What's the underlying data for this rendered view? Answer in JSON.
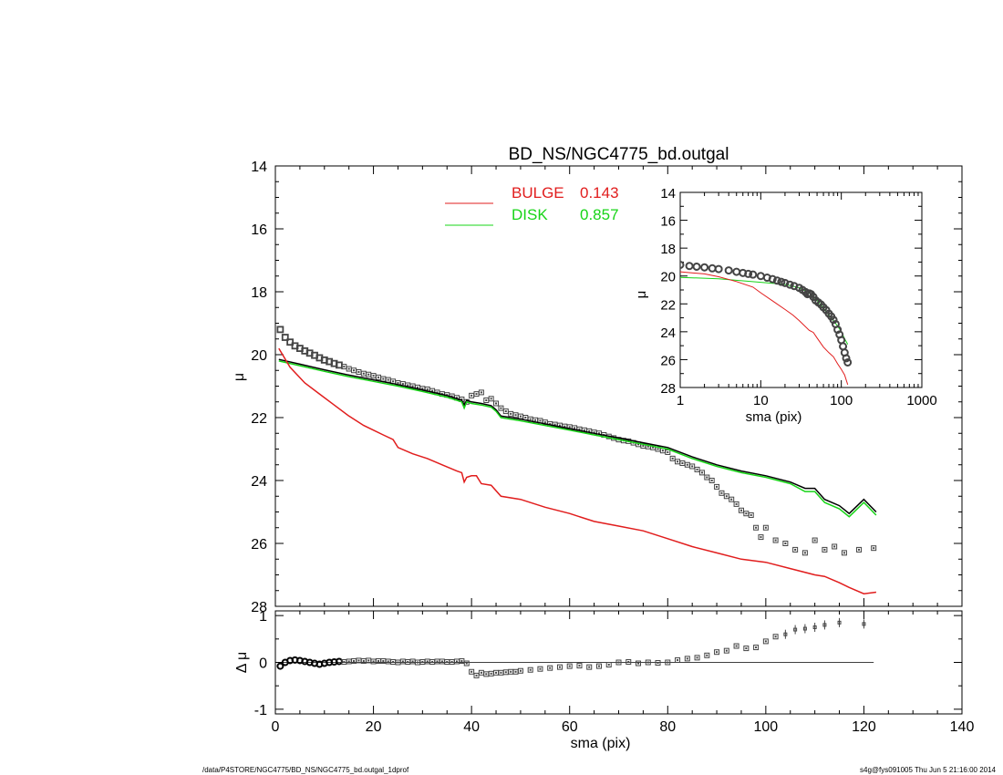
{
  "chart_data": [
    {
      "id": "main",
      "type": "scatter",
      "title": "BD_NS/NGC4775_bd.outgal",
      "ylabel": "μ",
      "xlim": [
        0,
        140
      ],
      "ylim": [
        28,
        14
      ],
      "yticks": [
        14,
        16,
        18,
        20,
        22,
        24,
        26,
        28
      ],
      "grid": false,
      "legend_position": "top-center",
      "legend": [
        {
          "label": "BULGE",
          "value": "0.143",
          "color": "#e11d1d"
        },
        {
          "label": "DISK",
          "value": "0.857",
          "color": "#17d417"
        }
      ],
      "series": [
        {
          "name": "data",
          "style": "open-square-markers",
          "color": "#444444",
          "x": [
            1,
            2,
            3,
            4,
            5,
            6,
            7,
            8,
            9,
            10,
            11,
            12,
            13,
            14,
            15,
            16,
            17,
            18,
            19,
            20,
            21,
            22,
            23,
            24,
            25,
            26,
            27,
            28,
            29,
            30,
            31,
            32,
            33,
            34,
            35,
            36,
            37,
            38,
            39,
            40,
            41,
            42,
            43,
            44,
            45,
            46,
            47,
            48,
            49,
            50,
            51,
            52,
            53,
            54,
            55,
            56,
            57,
            58,
            59,
            60,
            61,
            62,
            63,
            64,
            65,
            66,
            67,
            68,
            69,
            70,
            71,
            72,
            73,
            74,
            75,
            76,
            77,
            78,
            79,
            80,
            81,
            82,
            83,
            84,
            85,
            86,
            87,
            88,
            89,
            90,
            91,
            92,
            93,
            94,
            95,
            96,
            97,
            98,
            99,
            100,
            102,
            104,
            106,
            108,
            110,
            112,
            114,
            116,
            119,
            122
          ],
          "y": [
            19.2,
            19.45,
            19.6,
            19.72,
            19.8,
            19.88,
            19.95,
            20.02,
            20.1,
            20.17,
            20.22,
            20.28,
            20.33,
            20.38,
            20.45,
            20.5,
            20.55,
            20.6,
            20.63,
            20.67,
            20.72,
            20.77,
            20.8,
            20.85,
            20.9,
            20.93,
            20.97,
            21.0,
            21.04,
            21.08,
            21.1,
            21.15,
            21.2,
            21.25,
            21.28,
            21.32,
            21.37,
            21.42,
            21.5,
            21.3,
            21.25,
            21.2,
            21.45,
            21.4,
            21.55,
            21.7,
            21.8,
            21.88,
            21.92,
            21.96,
            22.0,
            22.05,
            22.08,
            22.1,
            22.15,
            22.2,
            22.22,
            22.25,
            22.28,
            22.3,
            22.33,
            22.37,
            22.4,
            22.43,
            22.47,
            22.5,
            22.55,
            22.6,
            22.65,
            22.7,
            22.73,
            22.75,
            22.8,
            22.85,
            22.9,
            22.92,
            22.95,
            23.0,
            23.05,
            23.1,
            23.3,
            23.4,
            23.45,
            23.5,
            23.55,
            23.65,
            23.75,
            23.9,
            24.0,
            24.2,
            24.4,
            24.5,
            24.6,
            24.75,
            24.95,
            25.05,
            25.1,
            25.5,
            25.8,
            25.5,
            25.9,
            26.0,
            26.2,
            26.3,
            25.9,
            26.2,
            26.1,
            26.3,
            26.2,
            26.15
          ]
        },
        {
          "name": "model",
          "style": "line",
          "color": "#000000",
          "x": [
            0.7,
            5,
            10,
            15,
            20,
            25,
            30,
            35,
            38,
            38.5,
            39,
            40,
            42,
            44,
            45,
            46,
            50,
            55,
            60,
            65,
            70,
            75,
            80,
            85,
            90,
            95,
            100,
            105,
            108,
            110,
            112,
            115,
            117,
            120,
            122.5
          ],
          "y": [
            20.15,
            20.3,
            20.48,
            20.65,
            20.8,
            20.95,
            21.12,
            21.3,
            21.45,
            21.6,
            21.45,
            21.5,
            21.55,
            21.62,
            21.75,
            21.95,
            22.05,
            22.2,
            22.35,
            22.5,
            22.65,
            22.8,
            22.95,
            23.25,
            23.5,
            23.7,
            23.85,
            24.05,
            24.25,
            24.25,
            24.6,
            24.8,
            25.05,
            24.6,
            25.0
          ]
        },
        {
          "name": "disk",
          "style": "line",
          "color": "#17d417",
          "x": [
            0.7,
            5,
            10,
            15,
            20,
            25,
            30,
            35,
            38,
            38.5,
            39,
            40,
            42,
            44,
            45,
            46,
            50,
            55,
            60,
            65,
            70,
            75,
            80,
            85,
            90,
            95,
            100,
            105,
            108,
            110,
            112,
            115,
            117,
            120,
            122.5
          ],
          "y": [
            20.2,
            20.35,
            20.53,
            20.7,
            20.85,
            21.0,
            21.17,
            21.35,
            21.5,
            21.7,
            21.5,
            21.55,
            21.6,
            21.67,
            21.8,
            22.0,
            22.1,
            22.25,
            22.4,
            22.55,
            22.7,
            22.85,
            23.0,
            23.3,
            23.55,
            23.75,
            23.9,
            24.1,
            24.35,
            24.35,
            24.7,
            24.9,
            25.15,
            24.7,
            25.1
          ]
        },
        {
          "name": "bulge",
          "style": "line",
          "color": "#e11d1d",
          "x": [
            0.7,
            3,
            6,
            9,
            12,
            15,
            18,
            20,
            22,
            24,
            25,
            28,
            31,
            34,
            37,
            38,
            38.5,
            39,
            40,
            41,
            42,
            44,
            46,
            50,
            55,
            60,
            65,
            70,
            75,
            80,
            85,
            90,
            95,
            100,
            105,
            110,
            112,
            115,
            117,
            120,
            122.5
          ],
          "y": [
            19.8,
            20.4,
            20.9,
            21.25,
            21.6,
            21.95,
            22.25,
            22.4,
            22.55,
            22.7,
            22.95,
            23.15,
            23.3,
            23.5,
            23.7,
            23.75,
            24.05,
            23.9,
            23.85,
            23.85,
            24.1,
            24.15,
            24.5,
            24.6,
            24.85,
            25.05,
            25.3,
            25.45,
            25.6,
            25.85,
            26.1,
            26.3,
            26.5,
            26.6,
            26.8,
            27.0,
            27.05,
            27.25,
            27.4,
            27.6,
            27.55
          ]
        }
      ]
    },
    {
      "id": "inset",
      "type": "scatter",
      "xlabel": "sma (pix)",
      "ylabel": "μ",
      "xscale": "log",
      "xlim": [
        1,
        1000
      ],
      "ylim": [
        28,
        14
      ],
      "xticks": [
        1,
        10,
        100,
        1000
      ],
      "yticks": [
        14,
        16,
        18,
        20,
        22,
        24,
        26,
        28
      ],
      "series": [
        {
          "name": "data",
          "style": "open-circle-markers",
          "color": "#444444",
          "x": [
            1,
            1.3,
            1.6,
            2,
            2.5,
            3,
            4,
            5,
            6,
            7,
            8,
            10,
            12,
            14,
            16,
            18,
            20,
            23,
            26,
            30,
            33,
            36,
            38,
            40,
            42,
            45,
            48,
            52,
            56,
            60,
            65,
            70,
            75,
            80,
            85,
            90,
            95,
            100,
            105,
            110,
            115,
            120
          ],
          "y": [
            19.2,
            19.28,
            19.33,
            19.38,
            19.45,
            19.5,
            19.6,
            19.7,
            19.78,
            19.85,
            19.9,
            20.0,
            20.12,
            20.22,
            20.33,
            20.42,
            20.5,
            20.62,
            20.72,
            20.85,
            21.0,
            21.15,
            21.3,
            21.25,
            21.3,
            21.5,
            21.75,
            21.9,
            22.05,
            22.25,
            22.45,
            22.7,
            22.9,
            23.15,
            23.45,
            23.85,
            24.2,
            24.6,
            25.05,
            25.5,
            25.9,
            26.2
          ]
        },
        {
          "name": "disk",
          "style": "line",
          "color": "#17d417",
          "x": [
            1,
            3,
            10,
            20,
            30,
            40,
            50,
            60,
            70,
            80,
            90,
            100,
            110,
            120
          ],
          "y": [
            20.1,
            20.2,
            20.45,
            20.6,
            20.85,
            21.2,
            21.75,
            22.3,
            22.8,
            23.2,
            23.6,
            24.0,
            24.5,
            24.9
          ]
        },
        {
          "name": "bulge",
          "style": "line",
          "color": "#e11d1d",
          "x": [
            1,
            2,
            3,
            5,
            8,
            10,
            15,
            20,
            25,
            30,
            40,
            45,
            50,
            60,
            70,
            80,
            90,
            100,
            110,
            120
          ],
          "y": [
            19.7,
            19.85,
            20.05,
            20.4,
            20.8,
            21.2,
            21.9,
            22.4,
            22.8,
            23.2,
            23.9,
            24.05,
            24.45,
            25.1,
            25.5,
            25.8,
            26.3,
            26.7,
            27.1,
            27.8
          ]
        }
      ]
    },
    {
      "id": "residual",
      "type": "scatter",
      "xlabel": "sma (pix)",
      "ylabel": "Δ μ",
      "xlim": [
        0,
        140
      ],
      "ylim": [
        -1.1,
        1.1
      ],
      "xticks": [
        0,
        20,
        40,
        60,
        80,
        100,
        120,
        140
      ],
      "yticks": [
        -1,
        0,
        1
      ],
      "series": [
        {
          "name": "residual",
          "style": "open-square-markers",
          "color": "#444444",
          "x": [
            1,
            2,
            3,
            4,
            5,
            6,
            7,
            8,
            9,
            10,
            11,
            12,
            13,
            14,
            15,
            16,
            17,
            18,
            19,
            20,
            21,
            22,
            23,
            24,
            25,
            26,
            27,
            28,
            29,
            30,
            31,
            32,
            33,
            34,
            35,
            36,
            37,
            38,
            39,
            40,
            41,
            42,
            43,
            44,
            45,
            46,
            47,
            48,
            49,
            50,
            52,
            54,
            56,
            58,
            60,
            62,
            64,
            66,
            68,
            70,
            72,
            74,
            76,
            78,
            80,
            82,
            84,
            86,
            88,
            90,
            92,
            94,
            96,
            98,
            100,
            102,
            104,
            106,
            108,
            110,
            112,
            115,
            120
          ],
          "y": [
            -0.08,
            0.0,
            0.04,
            0.05,
            0.04,
            0.02,
            0.0,
            -0.02,
            -0.04,
            -0.02,
            0.0,
            0.01,
            0.02,
            0.01,
            0.02,
            0.03,
            0.04,
            0.03,
            0.04,
            0.02,
            0.03,
            0.03,
            0.02,
            0.01,
            0.0,
            0.02,
            0.01,
            0.02,
            0.0,
            0.01,
            0.02,
            0.01,
            0.02,
            0.02,
            0.01,
            0.01,
            0.02,
            0.03,
            -0.02,
            -0.2,
            -0.28,
            -0.22,
            -0.25,
            -0.24,
            -0.22,
            -0.22,
            -0.21,
            -0.2,
            -0.2,
            -0.18,
            -0.16,
            -0.14,
            -0.12,
            -0.1,
            -0.08,
            -0.07,
            -0.1,
            -0.08,
            -0.05,
            0.0,
            0.01,
            -0.02,
            0.0,
            -0.01,
            0.0,
            0.05,
            0.08,
            0.1,
            0.15,
            0.22,
            0.25,
            0.35,
            0.3,
            0.32,
            0.45,
            0.55,
            0.6,
            0.7,
            0.72,
            0.75,
            0.8,
            0.85,
            0.82
          ]
        }
      ]
    }
  ],
  "footer": {
    "left": "/data/P4STORE/NGC4775/BD_NS/NGC4775_bd.outgal_1dprof",
    "right": "s4g@fys091005  Thu Jun  5 21:16:00 2014"
  }
}
